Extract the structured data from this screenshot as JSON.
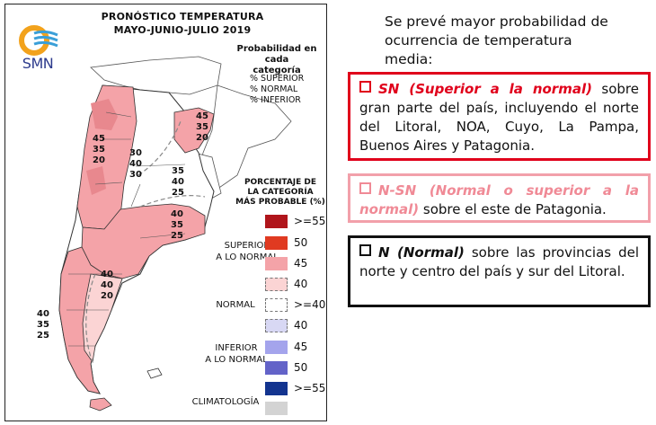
{
  "map": {
    "title_line1": "PRONÓSTICO TEMPERATURA",
    "title_line2": "MAYO-JUNIO-JULIO 2019",
    "logo_text": "SMN",
    "prob_title_line1": "Probabilidad en cada",
    "prob_title_line2": "categoría",
    "prob_list": [
      "% SUPERIOR",
      "% NORMAL",
      "% INFERIOR"
    ],
    "regions": [
      {
        "label": "north-west",
        "values": [
          "45",
          "35",
          "20"
        ]
      },
      {
        "label": "north-center",
        "values": [
          "30",
          "40",
          "30"
        ]
      },
      {
        "label": "north-east",
        "values": [
          "45",
          "35",
          "20"
        ]
      },
      {
        "label": "east-center",
        "values": [
          "35",
          "40",
          "25"
        ]
      },
      {
        "label": "pampa-east",
        "values": [
          "40",
          "35",
          "25"
        ]
      },
      {
        "label": "patagonia-center",
        "values": [
          "40",
          "40",
          "20"
        ]
      },
      {
        "label": "patagonia-south",
        "values": [
          "40",
          "35",
          "25"
        ]
      }
    ]
  },
  "legend": {
    "title_line1": "PORCENTAJE DE",
    "title_line2": "LA CATEGORÍA",
    "title_line3": "MÁS PROBABLE (%)",
    "rows": [
      {
        "value": ">=55",
        "color": "#b0151b",
        "dashed": false
      },
      {
        "value": "50",
        "color": "#e03a21",
        "dashed": false
      },
      {
        "value": "45",
        "color": "#f4a3a8",
        "dashed": false
      },
      {
        "value": "40",
        "color": "#fbd4d4",
        "dashed": true
      },
      {
        "value": ">=40",
        "color": "#ffffff",
        "dashed": true
      },
      {
        "value": "40",
        "color": "#d8d8f4",
        "dashed": true
      },
      {
        "value": "45",
        "color": "#a4a4ec",
        "dashed": false
      },
      {
        "value": "50",
        "color": "#6363c8",
        "dashed": false
      },
      {
        "value": ">=55",
        "color": "#13348f",
        "dashed": false
      },
      {
        "value": "",
        "color": "#d3d3d3",
        "dashed": false
      }
    ],
    "superior_line1": "SUPERIOR",
    "superior_line2": "A LO NORMAL",
    "normal": "NORMAL",
    "inferior_line1": "INFERIOR",
    "inferior_line2": "A LO NORMAL",
    "climatologia": "CLIMATOLOGÍA"
  },
  "text": {
    "intro": "Se prevé mayor probabilidad de ocurrencia de temperatura media:",
    "box1_lead": "SN (Superior a la normal)",
    "box1_rest": " sobre gran parte del país, incluyendo el norte del Litoral, NOA, Cuyo, La Pampa, Buenos Aires y Patagonia.",
    "box2_lead": "N-SN (Normal o superior a la normal)",
    "box2_rest": " sobre el este de Patagonia.",
    "box3_lead": "N (Normal)",
    "box3_rest": " sobre las provincias del norte y centro del país y sur del Litoral."
  },
  "colors": {
    "superior_red": "#e0001b",
    "nsn_pink": "#f08a96",
    "normal_black": "#111111",
    "map_pink": "#f4a3a8",
    "map_light_pink": "#fbd4d4"
  }
}
